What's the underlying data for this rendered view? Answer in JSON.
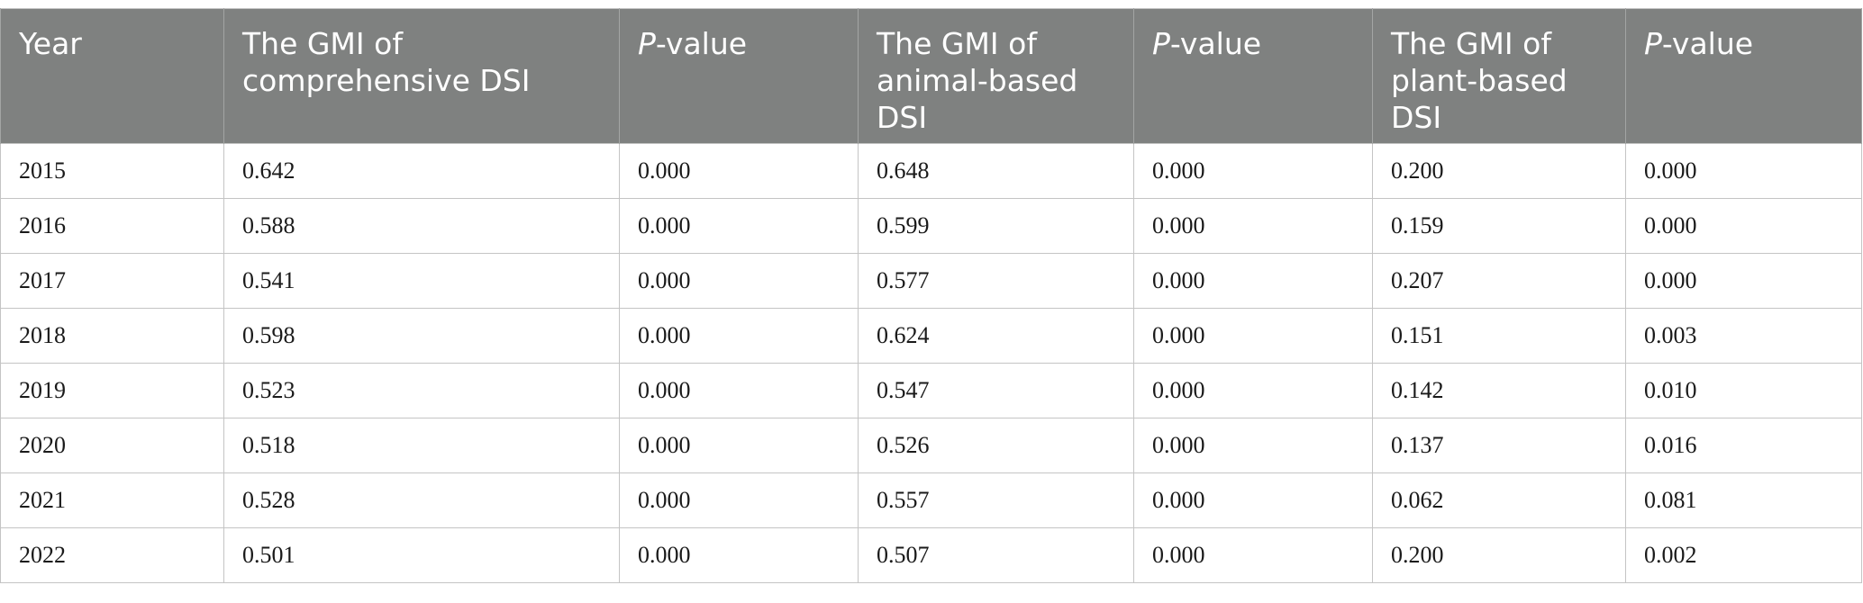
{
  "table": {
    "headers": [
      {
        "text": "Year"
      },
      {
        "text": "The GMI of comprehensive DSI"
      },
      {
        "italic": "P",
        "rest": "-value"
      },
      {
        "text": "The GMI of animal-based DSI"
      },
      {
        "italic": "P",
        "rest": "-value"
      },
      {
        "text": "The GMI of plant-based DSI"
      },
      {
        "italic": "P",
        "rest": "-value"
      }
    ],
    "rows": [
      [
        "2015",
        "0.642",
        "0.000",
        "0.648",
        "0.000",
        "0.200",
        "0.000"
      ],
      [
        "2016",
        "0.588",
        "0.000",
        "0.599",
        "0.000",
        "0.159",
        "0.000"
      ],
      [
        "2017",
        "0.541",
        "0.000",
        "0.577",
        "0.000",
        "0.207",
        "0.000"
      ],
      [
        "2018",
        "0.598",
        "0.000",
        "0.624",
        "0.000",
        "0.151",
        "0.003"
      ],
      [
        "2019",
        "0.523",
        "0.000",
        "0.547",
        "0.000",
        "0.142",
        "0.010"
      ],
      [
        "2020",
        "0.518",
        "0.000",
        "0.526",
        "0.000",
        "0.137",
        "0.016"
      ],
      [
        "2021",
        "0.528",
        "0.000",
        "0.557",
        "0.000",
        "0.062",
        "0.081"
      ],
      [
        "2022",
        "0.501",
        "0.000",
        "0.507",
        "0.000",
        "0.200",
        "0.002"
      ]
    ]
  },
  "colors": {
    "header_bg": "#7f8180",
    "header_text": "#ffffff",
    "grid": "#c4c4c4"
  }
}
